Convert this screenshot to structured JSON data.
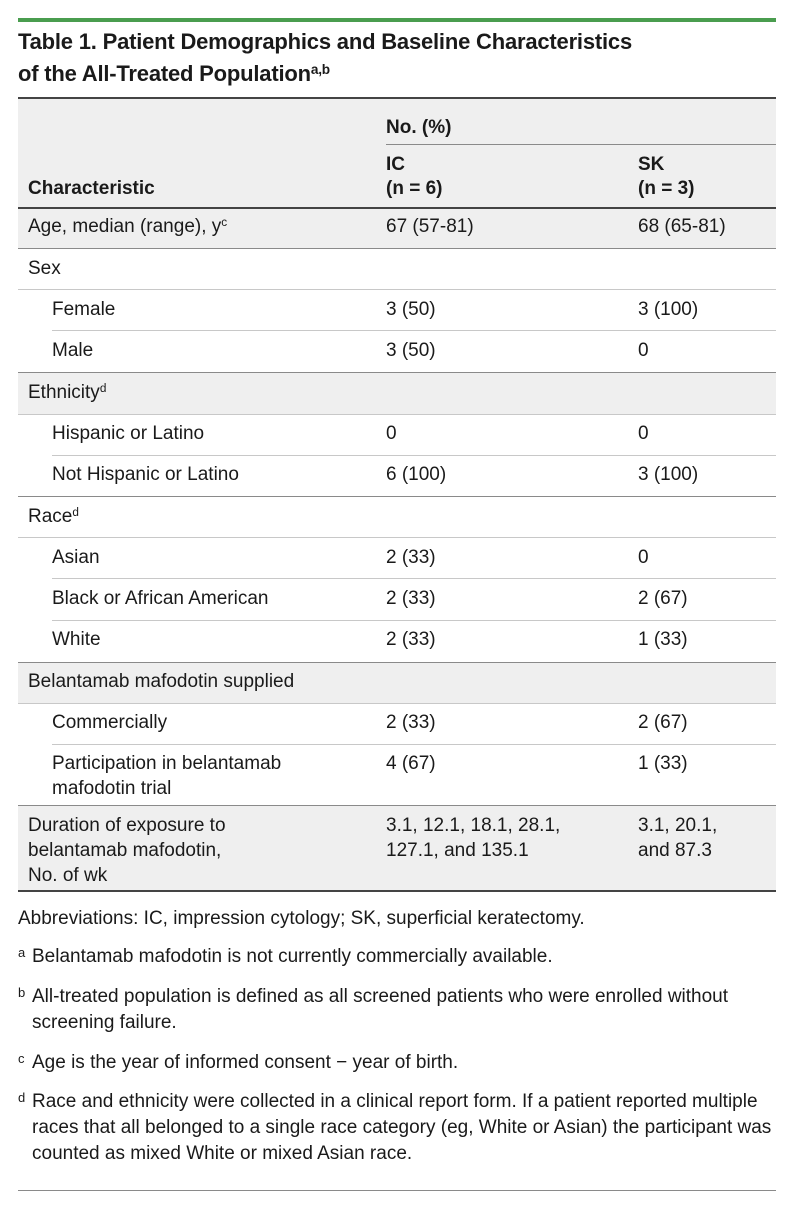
{
  "table": {
    "title_line1": "Table 1. Patient Demographics and Baseline Characteristics",
    "title_line2": "of the All-Treated Population",
    "title_sup": "a,b",
    "header": {
      "characteristic": "Characteristic",
      "group_label": "No. (%)",
      "ic_label": "IC",
      "ic_n": "(n = 6)",
      "sk_label": "SK",
      "sk_n": "(n = 3)"
    },
    "rows": {
      "age": {
        "label": "Age, median (range), y",
        "sup": "c",
        "ic": "67 (57-81)",
        "sk": "68 (65-81)"
      },
      "sex": {
        "label": "Sex"
      },
      "female": {
        "label": "Female",
        "ic": "3 (50)",
        "sk": "3 (100)"
      },
      "male": {
        "label": "Male",
        "ic": "3 (50)",
        "sk": "0"
      },
      "ethnicity": {
        "label": "Ethnicity",
        "sup": "d"
      },
      "hispanic": {
        "label": "Hispanic or Latino",
        "ic": "0",
        "sk": "0"
      },
      "not_hispanic": {
        "label": "Not Hispanic or Latino",
        "ic": "6 (100)",
        "sk": "3 (100)"
      },
      "race": {
        "label": "Race",
        "sup": "d"
      },
      "asian": {
        "label": "Asian",
        "ic": "2 (33)",
        "sk": "0"
      },
      "black": {
        "label": "Black or African American",
        "ic": "2 (33)",
        "sk": "2 (67)"
      },
      "white": {
        "label": "White",
        "ic": "2 (33)",
        "sk": "1 (33)"
      },
      "supplied": {
        "label": "Belantamab mafodotin supplied"
      },
      "commercially": {
        "label": "Commercially",
        "ic": "2 (33)",
        "sk": "2 (67)"
      },
      "participation": {
        "label_line1": "Participation in belantamab",
        "label_line2": "mafodotin trial",
        "ic": "4 (67)",
        "sk": "1 (33)"
      },
      "duration": {
        "label_line1": "Duration of exposure to",
        "label_line2": "belantamab mafodotin,",
        "label_line3": "No. of wk",
        "ic_line1": "3.1, 12.1, 18.1, 28.1,",
        "ic_line2": "127.1, and 135.1",
        "sk_line1": "3.1, 20.1,",
        "sk_line2": "and 87.3"
      }
    },
    "footnotes": {
      "abbreviations": "Abbreviations: IC, impression cytology; SK, superficial keratectomy.",
      "a_mark": "a",
      "a_text": "Belantamab mafodotin is not currently commercially available.",
      "b_mark": "b",
      "b_text": "All-treated population is defined as all screened patients who were enrolled without screening failure.",
      "c_mark": "c",
      "c_text": "Age is the year of informed consent − year of birth.",
      "d_mark": "d",
      "d_text": "Race and ethnicity were collected in a clinical report form. If a patient reported multiple races that all belonged to a single race category (eg, White or Asian) the participant was counted as mixed White or mixed Asian race."
    }
  }
}
